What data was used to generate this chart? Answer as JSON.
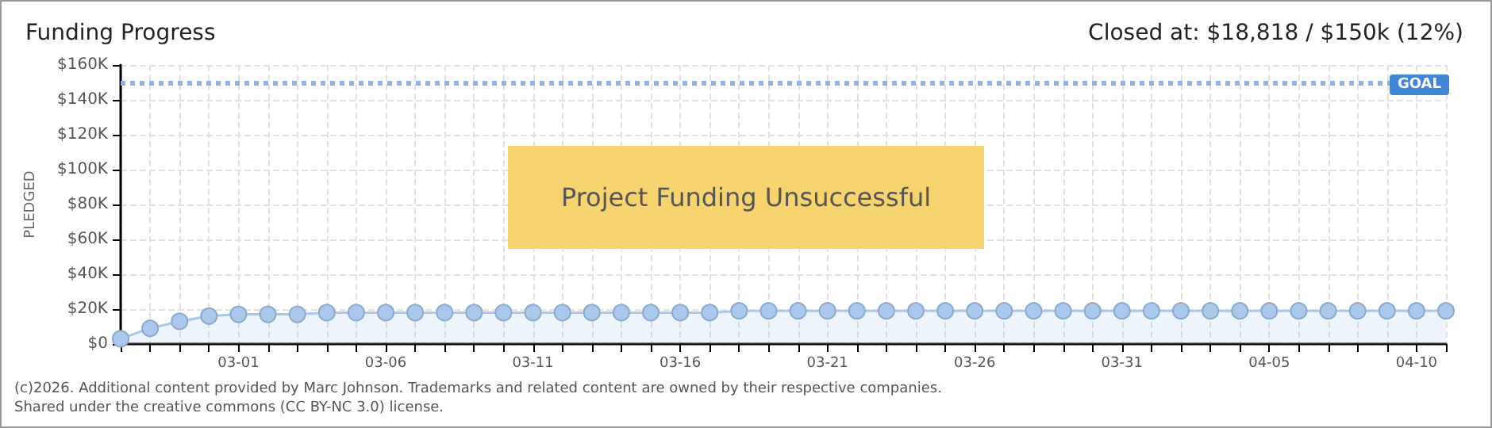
{
  "chart_data": {
    "type": "area",
    "title": "Funding Progress",
    "subtitle": "Closed at: $18,818 / $150k (12%)",
    "ylabel": "PLEDGED",
    "categories": [
      null,
      null,
      null,
      null,
      "03-01",
      null,
      null,
      null,
      null,
      "03-06",
      null,
      null,
      null,
      null,
      "03-11",
      null,
      null,
      null,
      null,
      "03-16",
      null,
      null,
      null,
      null,
      "03-21",
      null,
      null,
      null,
      null,
      "03-26",
      null,
      null,
      null,
      null,
      "03-31",
      null,
      null,
      null,
      null,
      "04-05",
      null,
      null,
      null,
      null,
      "04-10",
      null
    ],
    "series": [
      {
        "color": "#a9c8ec",
        "values": [
          3000,
          9000,
          13000,
          16000,
          17000,
          17000,
          17000,
          18000,
          18000,
          18000,
          18000,
          18000,
          18000,
          18000,
          18000,
          18000,
          18000,
          18000,
          18000,
          18000,
          18000,
          19000,
          19000,
          19000,
          19000,
          19000,
          19000,
          19000,
          19000,
          19000,
          19000,
          19000,
          19000,
          19000,
          19000,
          19000,
          19000,
          19000,
          19000,
          19000,
          19000,
          19000,
          19000,
          19000,
          19000,
          19000
        ]
      }
    ],
    "ylim": [
      0,
      160000
    ],
    "yticks": [
      {
        "value": 0,
        "label": "$0"
      },
      {
        "value": 20000,
        "label": "$20K"
      },
      {
        "value": 40000,
        "label": "$40K"
      },
      {
        "value": 60000,
        "label": "$60K"
      },
      {
        "value": 80000,
        "label": "$80K"
      },
      {
        "value": 100000,
        "label": "$100K"
      },
      {
        "value": 120000,
        "label": "$120K"
      },
      {
        "value": 140000,
        "label": "$140K"
      },
      {
        "value": 160000,
        "label": "$160K"
      }
    ],
    "ref_lines": [
      {
        "axis": "y",
        "value": 150000,
        "label": "GOAL",
        "color": "#8fb4e3",
        "line_style": "dotted"
      }
    ],
    "annotations": [
      "Project Funding Unsuccessful",
      "(c)2026. Additional content provided by Marc Johnson. Trademarks and related content are owned by their respective companies.",
      "Shared under the creative commons (CC BY-NC 3.0) license."
    ],
    "grid": true,
    "marker": "circle"
  }
}
